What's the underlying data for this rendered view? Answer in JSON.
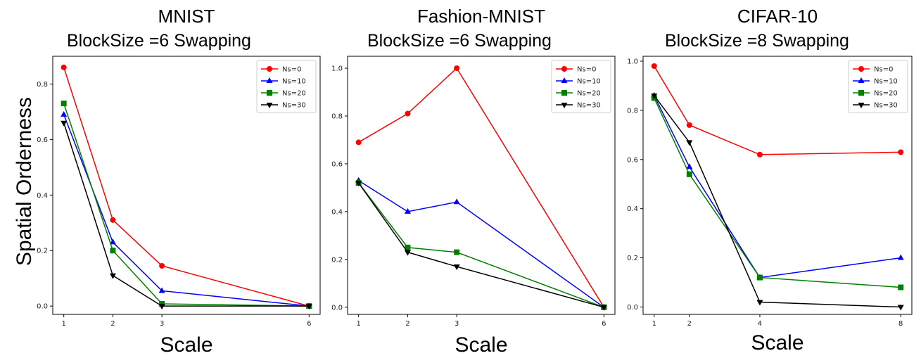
{
  "ylabel": "Spatial Orderness",
  "chart_data": [
    {
      "type": "line",
      "title": "MNIST",
      "subtitle": "BlockSize =6 Swapping",
      "xlabel": "Scale",
      "x": [
        1,
        2,
        3,
        6
      ],
      "xticks": [
        "1",
        "2",
        "3",
        "6"
      ],
      "ylim": [
        -0.03,
        0.9
      ],
      "yticks": [
        "0.0",
        "0.2",
        "0.4",
        "0.6",
        "0.8"
      ],
      "legend_position": "top-right",
      "series": [
        {
          "name": "Ns=0",
          "color": "#ff0000",
          "marker": "circle",
          "values": [
            0.86,
            0.31,
            0.145,
            0.0
          ]
        },
        {
          "name": "Ns=10",
          "color": "#0000ff",
          "marker": "triangle-up",
          "values": [
            0.69,
            0.23,
            0.055,
            0.0
          ]
        },
        {
          "name": "Ns=20",
          "color": "#008000",
          "marker": "square",
          "values": [
            0.73,
            0.2,
            0.008,
            0.0
          ]
        },
        {
          "name": "Ns=30",
          "color": "#000000",
          "marker": "triangle-down",
          "values": [
            0.66,
            0.11,
            0.0,
            0.0
          ]
        }
      ]
    },
    {
      "type": "line",
      "title": "Fashion-MNIST",
      "subtitle": "BlockSize =6 Swapping",
      "xlabel": "Scale",
      "x": [
        1,
        2,
        3,
        6
      ],
      "xticks": [
        "1",
        "2",
        "3",
        "6"
      ],
      "ylim": [
        -0.03,
        1.05
      ],
      "yticks": [
        "0.0",
        "0.2",
        "0.4",
        "0.6",
        "0.8",
        "1.0"
      ],
      "legend_position": "top-right",
      "series": [
        {
          "name": "Ns=0",
          "color": "#ff0000",
          "marker": "circle",
          "values": [
            0.69,
            0.81,
            1.0,
            0.0
          ]
        },
        {
          "name": "Ns=10",
          "color": "#0000ff",
          "marker": "triangle-up",
          "values": [
            0.53,
            0.4,
            0.44,
            0.0
          ]
        },
        {
          "name": "Ns=20",
          "color": "#008000",
          "marker": "square",
          "values": [
            0.52,
            0.25,
            0.23,
            0.0
          ]
        },
        {
          "name": "Ns=30",
          "color": "#000000",
          "marker": "triangle-down",
          "values": [
            0.52,
            0.23,
            0.17,
            0.0
          ]
        }
      ]
    },
    {
      "type": "line",
      "title": "CIFAR-10",
      "subtitle": "BlockSize =8 Swapping",
      "xlabel": "Scale",
      "x": [
        1,
        2,
        4,
        8
      ],
      "xticks": [
        "1",
        "2",
        "4",
        "8"
      ],
      "ylim": [
        -0.03,
        1.02
      ],
      "yticks": [
        "0.0",
        "0.2",
        "0.4",
        "0.6",
        "0.8",
        "1.0"
      ],
      "legend_position": "top-right",
      "series": [
        {
          "name": "Ns=0",
          "color": "#ff0000",
          "marker": "circle",
          "values": [
            0.98,
            0.74,
            0.62,
            0.63
          ]
        },
        {
          "name": "Ns=10",
          "color": "#0000ff",
          "marker": "triangle-up",
          "values": [
            0.86,
            0.57,
            0.12,
            0.2
          ]
        },
        {
          "name": "Ns=20",
          "color": "#008000",
          "marker": "square",
          "values": [
            0.85,
            0.54,
            0.12,
            0.08
          ]
        },
        {
          "name": "Ns=30",
          "color": "#000000",
          "marker": "triangle-down",
          "values": [
            0.86,
            0.67,
            0.02,
            0.0
          ]
        }
      ]
    }
  ]
}
